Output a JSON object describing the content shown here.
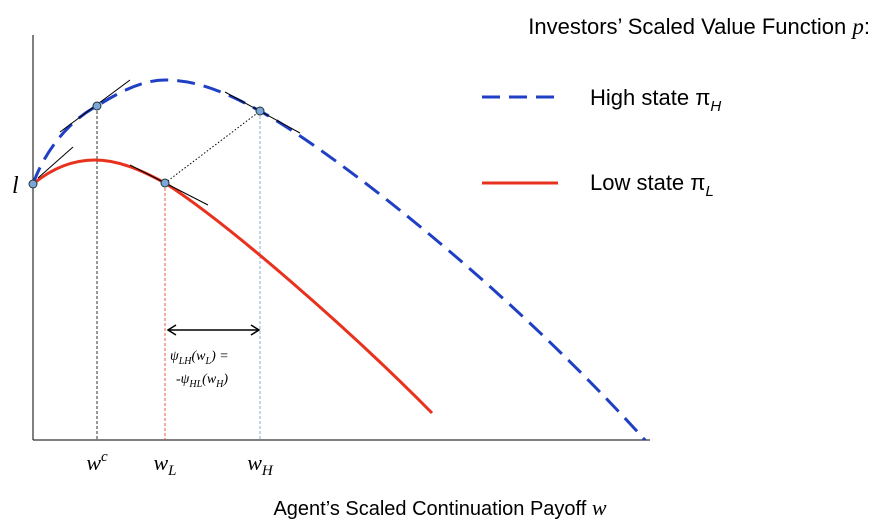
{
  "title": {
    "text": "Investors’ Scaled Value Function",
    "symbol": "p",
    "suffix": ":"
  },
  "legend": [
    {
      "label": "High state",
      "symbol": "π",
      "sub": "H"
    },
    {
      "label": "Low state",
      "symbol": "π",
      "sub": "L"
    }
  ],
  "y_label": "l",
  "x_markers": [
    {
      "symbol": "w",
      "sup": "c"
    },
    {
      "symbol": "w",
      "sub": "L"
    },
    {
      "symbol": "w",
      "sub": "H"
    }
  ],
  "x_axis_label": {
    "text": "Agent’s Scaled Continuation Payoff",
    "symbol": "w"
  },
  "annotation": {
    "line1": [
      "ψ",
      "LH",
      "(w",
      "L",
      ") ="
    ],
    "line2": [
      "-ψ",
      "HL",
      "(w",
      "H",
      ")"
    ]
  }
}
